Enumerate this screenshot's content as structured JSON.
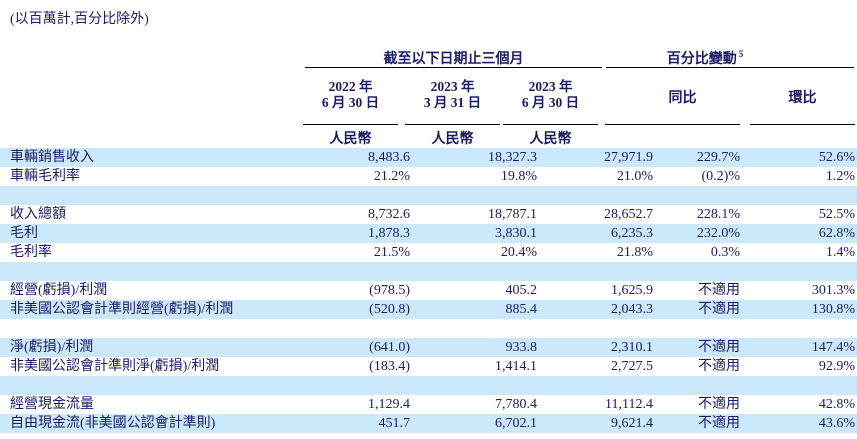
{
  "note": "(以百萬計,百分比除外)",
  "colors": {
    "highlight": "#cce8fb",
    "text": "#1b1b66",
    "rule": "#000000"
  },
  "header": {
    "period_group": "截至以下日期止三個月",
    "change_group": "百分比變動",
    "change_superscript": "5",
    "columns": [
      {
        "line1": "2022 年",
        "line2": "6 月 30 日"
      },
      {
        "line1": "2023 年",
        "line2": "3 月 31 日"
      },
      {
        "line1": "2023 年",
        "line2": "6 月 30 日"
      }
    ],
    "currency": "人民幣",
    "yoy": "同比",
    "qoq": "環比"
  },
  "rows": [
    {
      "label": "車輛銷售收入",
      "values": [
        "8,483.6",
        "18,327.3",
        "27,971.9",
        "229.7%",
        "52.6%"
      ],
      "highlight": true,
      "spacer": false
    },
    {
      "label": "車輛毛利率",
      "values": [
        "21.2%",
        "19.8%",
        "21.0%",
        "(0.2)%",
        "1.2%"
      ],
      "highlight": false,
      "spacer": false
    },
    {
      "label": "",
      "values": [
        "",
        "",
        "",
        "",
        ""
      ],
      "highlight": true,
      "spacer": true
    },
    {
      "label": "收入總額",
      "values": [
        "8,732.6",
        "18,787.1",
        "28,652.7",
        "228.1%",
        "52.5%"
      ],
      "highlight": false,
      "spacer": false
    },
    {
      "label": "毛利",
      "values": [
        "1,878.3",
        "3,830.1",
        "6,235.3",
        "232.0%",
        "62.8%"
      ],
      "highlight": true,
      "spacer": false
    },
    {
      "label": "毛利率",
      "values": [
        "21.5%",
        "20.4%",
        "21.8%",
        "0.3%",
        "1.4%"
      ],
      "highlight": false,
      "spacer": false
    },
    {
      "label": "",
      "values": [
        "",
        "",
        "",
        "",
        ""
      ],
      "highlight": true,
      "spacer": true
    },
    {
      "label": "經營(虧損)/利潤",
      "values": [
        "(978.5)",
        "405.2",
        "1,625.9",
        "不適用",
        "301.3%"
      ],
      "highlight": false,
      "spacer": false
    },
    {
      "label": "非美國公認會計準則經營(虧損)/利潤",
      "values": [
        "(520.8)",
        "885.4",
        "2,043.3",
        "不適用",
        "130.8%"
      ],
      "highlight": true,
      "spacer": false
    },
    {
      "label": "",
      "values": [
        "",
        "",
        "",
        "",
        ""
      ],
      "highlight": false,
      "spacer": true
    },
    {
      "label": "淨(虧損)/利潤",
      "values": [
        "(641.0)",
        "933.8",
        "2,310.1",
        "不適用",
        "147.4%"
      ],
      "highlight": true,
      "spacer": false
    },
    {
      "label": "非美國公認會計準則淨(虧損)/利潤",
      "values": [
        "(183.4)",
        "1,414.1",
        "2,727.5",
        "不適用",
        "92.9%"
      ],
      "highlight": false,
      "spacer": false
    },
    {
      "label": "",
      "values": [
        "",
        "",
        "",
        "",
        ""
      ],
      "highlight": true,
      "spacer": true
    },
    {
      "label": "經營現金流量",
      "values": [
        "1,129.4",
        "7,780.4",
        "11,112.4",
        "不適用",
        "42.8%"
      ],
      "highlight": false,
      "spacer": false
    },
    {
      "label": "自由現金流(非美國公認會計準則)",
      "values": [
        "451.7",
        "6,702.1",
        "9,621.4",
        "不適用",
        "43.6%"
      ],
      "highlight": true,
      "spacer": false
    }
  ]
}
